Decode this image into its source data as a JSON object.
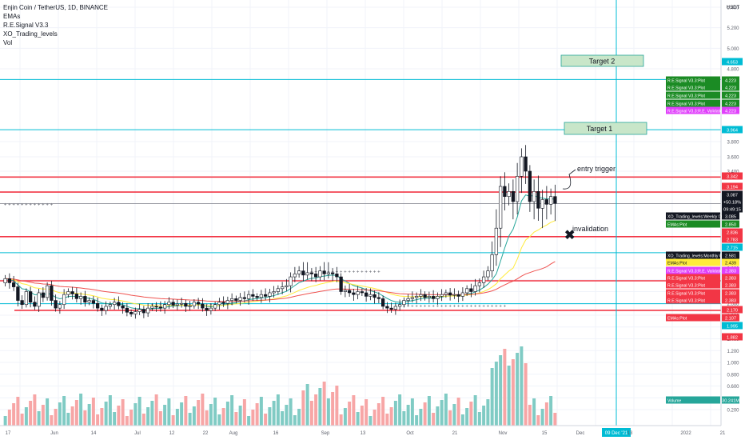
{
  "legend": {
    "symbol": "Enjin Coin / TetherUS, 1D, BINANCE",
    "indicators": [
      "EMAs",
      "R.E.Signal V3.3",
      "XO_Trading_levels",
      "Vol"
    ]
  },
  "currency_label": "USDT",
  "annotations": {
    "target2": "Target 2",
    "target1": "Target 1",
    "entry": "entry trigger",
    "invalidation": "invalidation",
    "cross_glyph": "✖"
  },
  "colors": {
    "up": "#26a69a",
    "down": "#ef5350",
    "red_line": "#f23645",
    "cyan": "#00bcd4",
    "ema_fast": "#26a69a",
    "ema_mid": "#ffeb3b",
    "ema_slow": "#ef5350",
    "target_box": "#c8e6c9",
    "vol_up": "#80cbc4",
    "vol_down": "#f7a6a6"
  },
  "price_axis_ticks": [
    "5.400",
    "5.200",
    "5.000",
    "4.800",
    "3.800",
    "3.600",
    "3.400",
    "2.600",
    "2.400",
    "2.200",
    "2.000",
    "1.800",
    "1.600",
    "1.400",
    "1.200",
    "1.000",
    "0.800",
    "0.600",
    "0.400",
    "0.200"
  ],
  "price_labels": [
    {
      "text": "4.653",
      "bg": "#00bcd4",
      "fg": "#ffffff"
    },
    {
      "text": "R.E.Signal V3.3:Plot  4.223",
      "bg": "#1b8b24",
      "fg": "#ffffff"
    },
    {
      "text": "R.E.Signal V3.3:Plot  4.223",
      "bg": "#1b8b24",
      "fg": "#ffffff"
    },
    {
      "text": "R.E.Signal V3.3:Plot  4.223",
      "bg": "#1b8b24",
      "fg": "#ffffff"
    },
    {
      "text": "R.E.Signal V3.3:Plot  4.223",
      "bg": "#1b8b24",
      "fg": "#ffffff"
    },
    {
      "text": "R.E.Signal V3.3:R.E. Validation  4.223",
      "bg": "#e040fb",
      "fg": "#ffffff"
    },
    {
      "text": "3.964",
      "bg": "#00bcd4",
      "fg": "#ffffff"
    },
    {
      "text": "3.342",
      "bg": "#f23645",
      "fg": "#ffffff"
    },
    {
      "text": "3.194",
      "bg": "#f23645",
      "fg": "#ffffff"
    },
    {
      "text": "3.087",
      "bg": "#131722",
      "fg": "#ffffff"
    },
    {
      "text": "+50.18%",
      "bg": "#131722",
      "fg": "#ffffff"
    },
    {
      "text": "09:49:15",
      "bg": "#131722",
      "fg": "#ffffff"
    },
    {
      "text": "XO_Trading_levels:Weekly Open  3.085",
      "bg": "#131722",
      "fg": "#ffffff"
    },
    {
      "text": "EMAs:Plot  2.850",
      "bg": "#1b8b24",
      "fg": "#ffffff"
    },
    {
      "text": "2.836",
      "bg": "#f23645",
      "fg": "#ffffff"
    },
    {
      "text": "2.783",
      "bg": "#f23645",
      "fg": "#ffffff"
    },
    {
      "text": "2.715",
      "bg": "#00bcd4",
      "fg": "#ffffff"
    },
    {
      "text": "XO_Trading_levels:Monthly Open  2.581",
      "bg": "#131722",
      "fg": "#ffffff"
    },
    {
      "text": "EMAs:Plot  2.439",
      "bg": "#ffeb3b",
      "fg": "#131722"
    },
    {
      "text": "R.E.Signal V3.3:R.E. Validation  2.383",
      "bg": "#e040fb",
      "fg": "#ffffff"
    },
    {
      "text": "R.E.Signal V3.3:Plot  2.383",
      "bg": "#f23645",
      "fg": "#ffffff"
    },
    {
      "text": "R.E.Signal V3.3:Plot  2.383",
      "bg": "#f23645",
      "fg": "#ffffff"
    },
    {
      "text": "R.E.Signal V3.3:Plot  2.383",
      "bg": "#f23645",
      "fg": "#ffffff"
    },
    {
      "text": "R.E.Signal V3.3:Plot  2.383",
      "bg": "#f23645",
      "fg": "#ffffff"
    },
    {
      "text": "2.170",
      "bg": "#f23645",
      "fg": "#ffffff"
    },
    {
      "text": "EMAs:Plot  2.107",
      "bg": "#f23645",
      "fg": "#ffffff"
    },
    {
      "text": "1.995",
      "bg": "#00bcd4",
      "fg": "#ffffff"
    },
    {
      "text": "1.882",
      "bg": "#f23645",
      "fg": "#ffffff"
    },
    {
      "text": "Volume  30.241M",
      "bg": "#26a69a",
      "fg": "#ffffff"
    }
  ],
  "time_axis_ticks": [
    "17",
    "Jun",
    "14",
    "Jul",
    "12",
    "22",
    "Aug",
    "16",
    "Sep",
    "13",
    "Oct",
    "21",
    "Nov",
    "15",
    "Dec",
    "09 Dec '21",
    "13",
    "2022",
    "21"
  ],
  "chart_data": {
    "type": "candlestick",
    "title": "Enjin Coin / TetherUS, 1D, BINANCE",
    "price_unit": "USDT",
    "levels": {
      "target2": 4.653,
      "target1": 3.964,
      "resistance": [
        3.342,
        3.194
      ],
      "weekly_open": 3.085,
      "red_lines": [
        2.836,
        2.383,
        1.882
      ],
      "cyan_levels": [
        4.653,
        3.964,
        2.715,
        1.995
      ]
    },
    "last": {
      "price": 3.087,
      "change": "+50.18%",
      "countdown": "09:49:15"
    },
    "volume_last": "30.241M",
    "close": [
      2.42,
      2.35,
      2.28,
      2.05,
      1.98,
      2.2,
      2.02,
      1.95,
      2.18,
      2.1,
      2.3,
      2.05,
      1.92,
      1.98,
      2.15,
      2.2,
      2.16,
      2.08,
      2.12,
      2.02,
      2.05,
      2.0,
      1.92,
      1.88,
      1.95,
      1.98,
      2.02,
      1.96,
      1.92,
      1.85,
      1.82,
      1.86,
      1.9,
      1.84,
      1.92,
      1.95,
      1.94,
      1.92,
      1.98,
      2.02,
      1.97,
      1.99,
      2.0,
      1.95,
      1.96,
      2.02,
      1.99,
      1.92,
      1.88,
      1.92,
      1.98,
      2.02,
      2.0,
      2.05,
      2.08,
      2.05,
      2.1,
      2.08,
      2.15,
      2.12,
      2.1,
      2.15,
      2.12,
      2.18,
      2.2,
      2.25,
      2.28,
      2.3,
      2.45,
      2.5,
      2.55,
      2.48,
      2.52,
      2.5,
      2.45,
      2.55,
      2.5,
      2.52,
      2.5,
      2.45,
      2.2,
      2.22,
      2.18,
      2.15,
      2.2,
      2.18,
      2.12,
      2.15,
      2.1,
      2.08,
      1.95,
      1.92,
      1.9,
      1.95,
      1.98,
      2.05,
      2.08,
      2.1,
      2.12,
      2.15,
      2.1,
      2.12,
      2.08,
      2.12,
      2.15,
      2.18,
      2.14,
      2.15,
      2.12,
      2.18,
      2.25,
      2.2,
      2.3,
      2.35,
      2.45,
      2.55,
      2.7,
      2.9,
      3.25,
      3.15,
      3.2,
      3.1,
      3.35,
      3.6,
      3.4,
      3.1,
      3.2,
      3.05,
      3.12,
      3.08,
      3.15,
      3.087
    ]
  }
}
